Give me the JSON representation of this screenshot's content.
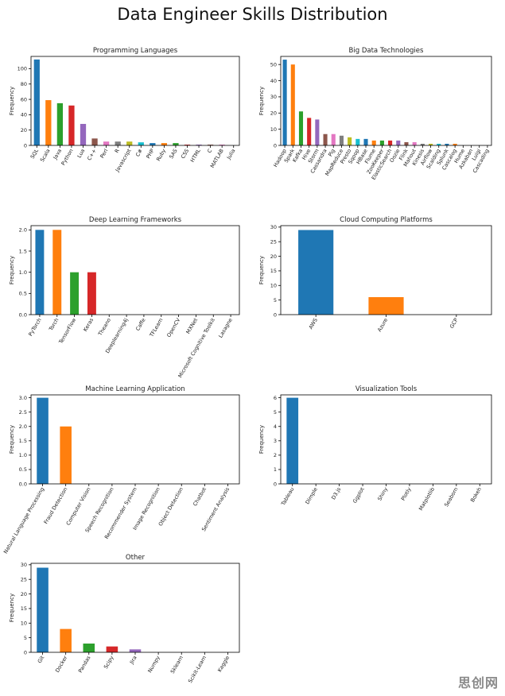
{
  "figure_title": "Data Engineer Skills Distribution",
  "watermark": "思创网",
  "colors": [
    "#1f77b4",
    "#ff7f0e",
    "#2ca02c",
    "#d62728",
    "#9467bd",
    "#8c564b",
    "#e377c2",
    "#7f7f7f",
    "#bcbd22",
    "#17becf"
  ],
  "chart_data": [
    {
      "type": "bar",
      "title": "Programming Languages",
      "ylabel": "Frequency",
      "xlabel": "",
      "ylim": [
        0,
        116
      ],
      "yticks": [
        0,
        20,
        40,
        60,
        80,
        100
      ],
      "categories": [
        "SQL",
        "Scala",
        "Java",
        "Python",
        "Lua",
        "C++",
        "Perl",
        "R",
        "Javascript",
        "C#",
        "PHP",
        "Ruby",
        "SAS",
        "CSS",
        "HTML",
        "C",
        "MATLAB",
        "Julia"
      ],
      "values": [
        112,
        59,
        55,
        52,
        28,
        9,
        5,
        5,
        5,
        4,
        3,
        3,
        3,
        1,
        1,
        1,
        1,
        0
      ]
    },
    {
      "type": "bar",
      "title": "Big Data Technologies",
      "ylabel": "Frequency",
      "xlabel": "",
      "ylim": [
        0,
        55
      ],
      "yticks": [
        0,
        10,
        20,
        30,
        40,
        50
      ],
      "categories": [
        "Hadoop",
        "Spark",
        "Kafka",
        "Hive",
        "Storm",
        "Cassandra",
        "Pig",
        "MapReduce",
        "Presto",
        "Sqoop",
        "HBase",
        "Flume",
        "ZooKeeper",
        "ElasticSearch",
        "Oozie",
        "Flink",
        "Mahout",
        "Kinesis",
        "Airflow",
        "Scalding",
        "Splunk",
        "Cascalog",
        "Hume",
        "Azkaban",
        "Luigi",
        "Cascading"
      ],
      "values": [
        53,
        50,
        21,
        17,
        16,
        7,
        7,
        6,
        5,
        4,
        4,
        3,
        3,
        3,
        3,
        2,
        2,
        1,
        1,
        1,
        1,
        1,
        0,
        0,
        0,
        0
      ]
    },
    {
      "type": "bar",
      "title": "Deep Learning Frameworks",
      "ylabel": "Frequency",
      "xlabel": "",
      "ylim": [
        0,
        2.1
      ],
      "yticks": [
        0.0,
        0.5,
        1.0,
        1.5,
        2.0
      ],
      "categories": [
        "PyTorch",
        "Torch",
        "TensorFlow",
        "Keras",
        "Theano",
        "Deeplearning4j",
        "Caffe",
        "TFLearn",
        "OpenCV",
        "MXNet",
        "Microsoft Cognitive Toolkit",
        "Lasagne"
      ],
      "values": [
        2,
        2,
        1,
        1,
        0,
        0,
        0,
        0,
        0,
        0,
        0,
        0
      ]
    },
    {
      "type": "bar",
      "title": "Cloud Computing Platforms",
      "ylabel": "Frequency",
      "xlabel": "",
      "ylim": [
        0,
        30.5
      ],
      "yticks": [
        0,
        5,
        10,
        15,
        20,
        25,
        30
      ],
      "categories": [
        "AWS",
        "Azure",
        "GCP"
      ],
      "values": [
        29,
        6,
        0
      ]
    },
    {
      "type": "bar",
      "title": "Machine Learning Application",
      "ylabel": "Frequency",
      "xlabel": "",
      "ylim": [
        0,
        3.1
      ],
      "yticks": [
        0.0,
        0.5,
        1.0,
        1.5,
        2.0,
        2.5,
        3.0
      ],
      "categories": [
        "Natural Language Processing",
        "Fraud Detection",
        "Computer Vision",
        "Speech Recognition",
        "Recommender System",
        "Image Recognition",
        "Object Detection",
        "Chatbot",
        "Sentiment Analysis"
      ],
      "values": [
        3,
        2,
        0,
        0,
        0,
        0,
        0,
        0,
        0
      ]
    },
    {
      "type": "bar",
      "title": "Visualization Tools",
      "ylabel": "Frequency",
      "xlabel": "",
      "ylim": [
        0,
        6.2
      ],
      "yticks": [
        0,
        1,
        2,
        3,
        4,
        5,
        6
      ],
      "categories": [
        "Tableau",
        "Dimple",
        "D3.js",
        "Ggplot",
        "Shiny",
        "Plotly",
        "Matplotlib",
        "Seaborn",
        "Bokeh"
      ],
      "values": [
        6,
        0,
        0,
        0,
        0,
        0,
        0,
        0,
        0
      ]
    },
    {
      "type": "bar",
      "title": "Other",
      "ylabel": "Frequency",
      "xlabel": "",
      "ylim": [
        0,
        30.5
      ],
      "yticks": [
        0,
        5,
        10,
        15,
        20,
        25,
        30
      ],
      "categories": [
        "Git",
        "Docker",
        "Pandas",
        "Scipy",
        "Jira",
        "Numpy",
        "Sklearn",
        "Scikit-Learn",
        "Kaggle"
      ],
      "values": [
        29,
        8,
        3,
        2,
        1,
        0,
        0,
        0,
        0
      ]
    }
  ]
}
